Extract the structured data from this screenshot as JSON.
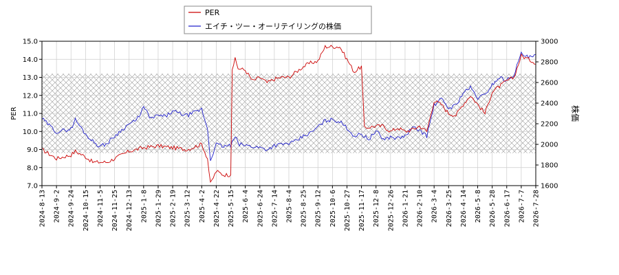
{
  "chart_data": {
    "type": "line",
    "legend": [
      "PER",
      "エイチ・ツー・オーリテイリングの株価"
    ],
    "legend_placement": "top-center",
    "colors": {
      "per": "#cc0000",
      "price": "#2222cc",
      "band_fill": "#999999",
      "grid": "#cccccc"
    },
    "ylabel_left": "PER",
    "ylabel_right": "株価",
    "y_left_ticks": [
      "7.0",
      "8.0",
      "9.0",
      "10.0",
      "11.0",
      "12.0",
      "13.0",
      "14.0",
      "15.0"
    ],
    "y_left_range": [
      7.0,
      15.0
    ],
    "y_right_ticks": [
      "1600",
      "1800",
      "2000",
      "2200",
      "2400",
      "2600",
      "2800",
      "3000"
    ],
    "y_right_range": [
      1600,
      3000
    ],
    "band_range_left": [
      8.8,
      13.2
    ],
    "grid": true,
    "x_ticks": [
      "2024-8-13",
      "2024-9-2",
      "2024-9-24",
      "2024-10-15",
      "2024-11-5",
      "2024-11-25",
      "2024-12-13",
      "2025-1-8",
      "2025-1-29",
      "2025-2-19",
      "2025-3-12",
      "2025-4-2",
      "2025-4-22",
      "2025-5-15",
      "2025-6-4",
      "2025-6-24",
      "2025-7-14",
      "2025-8-4",
      "2025-8-25",
      "2025-9-12",
      "2025-10-6",
      "2025-10-27",
      "2025-11-17",
      "2025-12-8",
      "2025-12-26",
      "2026-1-21",
      "2026-2-10",
      "2026-3-4",
      "2026-3-25",
      "2026-4-14",
      "2026-5-8",
      "2026-5-28",
      "2026-6-17",
      "2026-7-7",
      "2026-7-28"
    ],
    "per_series": {
      "name": "PER",
      "points": [
        [
          0,
          9.0
        ],
        [
          1,
          8.5
        ],
        [
          2,
          8.7
        ],
        [
          2.3,
          8.9
        ],
        [
          3,
          8.6
        ],
        [
          3.5,
          8.3
        ],
        [
          4,
          8.3
        ],
        [
          4.5,
          8.3
        ],
        [
          5,
          8.5
        ],
        [
          6,
          8.9
        ],
        [
          6.5,
          9.0
        ],
        [
          7,
          9.1
        ],
        [
          8,
          9.2
        ],
        [
          9,
          9.1
        ],
        [
          10,
          9.0
        ],
        [
          11,
          9.3
        ],
        [
          11.4,
          8.5
        ],
        [
          11.6,
          7.1
        ],
        [
          12,
          7.8
        ],
        [
          12.5,
          7.6
        ],
        [
          13,
          7.6
        ],
        [
          13.1,
          13.5
        ],
        [
          13.3,
          14.0
        ],
        [
          13.5,
          13.5
        ],
        [
          14,
          13.4
        ],
        [
          14.5,
          12.8
        ],
        [
          15,
          13.0
        ],
        [
          15.5,
          12.7
        ],
        [
          16,
          12.9
        ],
        [
          16.5,
          13.0
        ],
        [
          17,
          13.0
        ],
        [
          17.5,
          13.3
        ],
        [
          18,
          13.6
        ],
        [
          18.5,
          13.8
        ],
        [
          19,
          13.9
        ],
        [
          19.5,
          14.7
        ],
        [
          20,
          14.7
        ],
        [
          20.5,
          14.7
        ],
        [
          21,
          14.0
        ],
        [
          21.5,
          13.3
        ],
        [
          22,
          13.6
        ],
        [
          22.2,
          10.2
        ],
        [
          23,
          10.3
        ],
        [
          23.5,
          10.3
        ],
        [
          24,
          10.0
        ],
        [
          24.5,
          10.2
        ],
        [
          25,
          10.0
        ],
        [
          25.5,
          10.1
        ],
        [
          26,
          10.3
        ],
        [
          26.5,
          10.0
        ],
        [
          27,
          11.7
        ],
        [
          27.5,
          11.5
        ],
        [
          28,
          11.0
        ],
        [
          28.5,
          10.9
        ],
        [
          29,
          11.5
        ],
        [
          29.5,
          12.0
        ],
        [
          30,
          11.5
        ],
        [
          30.5,
          11.0
        ],
        [
          31,
          12.2
        ],
        [
          31.5,
          12.5
        ],
        [
          32,
          12.8
        ],
        [
          32.5,
          13.0
        ],
        [
          33,
          14.2
        ],
        [
          33.5,
          14.0
        ],
        [
          34,
          13.8
        ],
        [
          34.5,
          14.4
        ],
        [
          34.8,
          13.6
        ]
      ]
    },
    "price_series": {
      "name": "エイチ・ツー・オーリテイリングの株価",
      "points": [
        [
          0,
          2250
        ],
        [
          1,
          2120
        ],
        [
          2,
          2150
        ],
        [
          2.3,
          2240
        ],
        [
          3,
          2100
        ],
        [
          3.5,
          2030
        ],
        [
          4,
          1980
        ],
        [
          4.5,
          2010
        ],
        [
          5,
          2080
        ],
        [
          6,
          2200
        ],
        [
          6.5,
          2230
        ],
        [
          7,
          2360
        ],
        [
          7.5,
          2250
        ],
        [
          8,
          2280
        ],
        [
          8.5,
          2270
        ],
        [
          9,
          2320
        ],
        [
          10,
          2280
        ],
        [
          11,
          2340
        ],
        [
          11.4,
          2150
        ],
        [
          11.6,
          1850
        ],
        [
          12,
          2000
        ],
        [
          12.5,
          1980
        ],
        [
          13,
          1990
        ],
        [
          13.3,
          2070
        ],
        [
          13.6,
          2000
        ],
        [
          14,
          1990
        ],
        [
          15,
          1970
        ],
        [
          15.5,
          1950
        ],
        [
          16,
          1990
        ],
        [
          17,
          2010
        ],
        [
          17.5,
          2030
        ],
        [
          18,
          2080
        ],
        [
          18.5,
          2110
        ],
        [
          19,
          2170
        ],
        [
          19.5,
          2230
        ],
        [
          20,
          2240
        ],
        [
          20.5,
          2220
        ],
        [
          21,
          2160
        ],
        [
          21.5,
          2080
        ],
        [
          22,
          2100
        ],
        [
          22.5,
          2050
        ],
        [
          23,
          2130
        ],
        [
          23.5,
          2050
        ],
        [
          24,
          2070
        ],
        [
          24.5,
          2060
        ],
        [
          25,
          2080
        ],
        [
          25.5,
          2160
        ],
        [
          26,
          2140
        ],
        [
          26.5,
          2080
        ],
        [
          27,
          2380
        ],
        [
          27.5,
          2440
        ],
        [
          28,
          2350
        ],
        [
          28.5,
          2380
        ],
        [
          29,
          2500
        ],
        [
          29.5,
          2550
        ],
        [
          30,
          2450
        ],
        [
          30.5,
          2480
        ],
        [
          31,
          2580
        ],
        [
          31.5,
          2650
        ],
        [
          32,
          2620
        ],
        [
          32.5,
          2680
        ],
        [
          33,
          2880
        ],
        [
          33.5,
          2840
        ],
        [
          34,
          2860
        ],
        [
          34.5,
          2880
        ],
        [
          34.8,
          2780
        ]
      ]
    }
  }
}
